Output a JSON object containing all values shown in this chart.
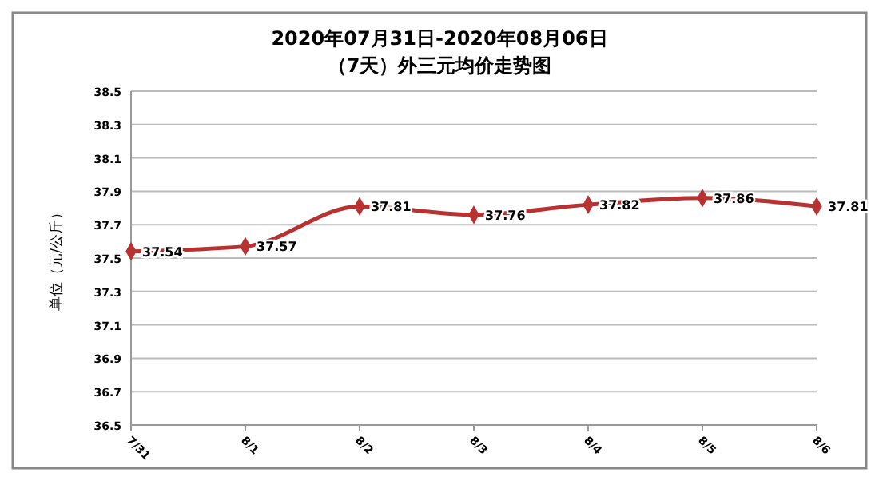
{
  "chart_data": {
    "type": "line",
    "title": "2020年07月31日-2020年08月06日",
    "subtitle": "（7天）外三元均价走势图",
    "ylabel": "单位（元/公斤）",
    "categories": [
      "7/31",
      "8/1",
      "8/2",
      "8/3",
      "8/4",
      "8/5",
      "8/6"
    ],
    "series": [
      {
        "color": "#b83232",
        "values": [
          37.54,
          37.57,
          37.81,
          37.76,
          37.82,
          37.86,
          37.81
        ]
      }
    ],
    "ylim": [
      36.5,
      38.5
    ],
    "yticks": [
      36.5,
      36.7,
      36.9,
      37.1,
      37.3,
      37.5,
      37.7,
      37.9,
      38.1,
      38.3,
      38.5
    ],
    "grid": "y",
    "marker": "diamond",
    "line_style": "solid",
    "data_labels": true
  }
}
